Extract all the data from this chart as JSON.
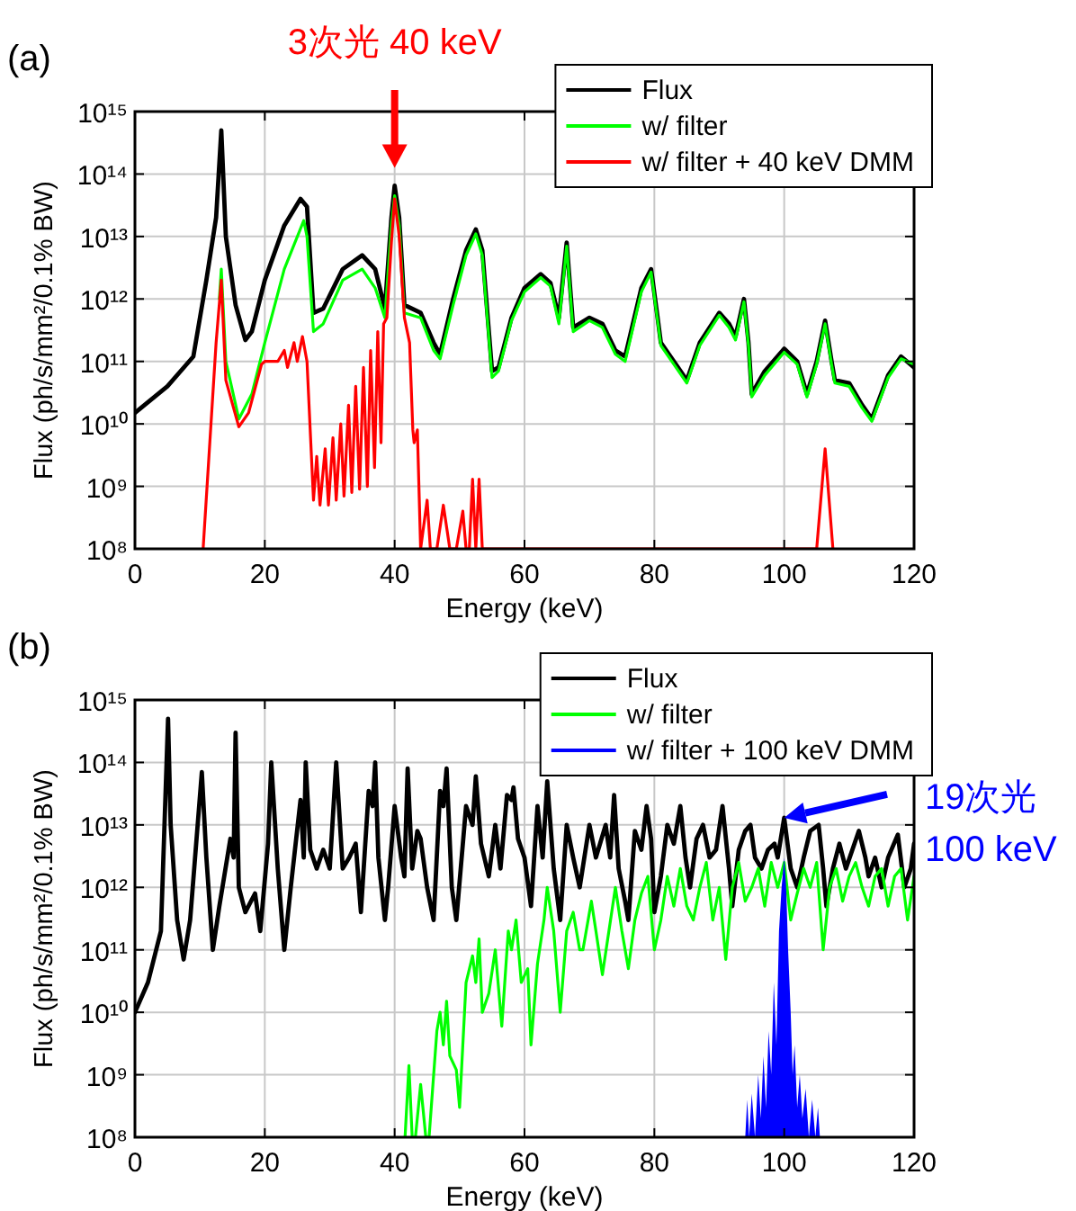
{
  "chart_data": [
    {
      "type": "line",
      "title": "(a)",
      "xlabel": "Energy (keV)",
      "ylabel": "Flux (ph/s/mm²/0.1% BW)",
      "log": true,
      "grid": true,
      "legend": "top right",
      "xlim": [
        0,
        120
      ],
      "xticks": [
        0,
        20,
        40,
        60,
        80,
        100,
        120
      ],
      "ylim": [
        100000000.0,
        1000000000000000.0
      ],
      "yticks": [
        {
          "value": 100000000.0,
          "label": "10⁸"
        },
        {
          "value": 1000000000.0,
          "label": "10⁹"
        },
        {
          "value": 10000000000.0,
          "label": "10¹⁰"
        },
        {
          "value": 100000000000.0,
          "label": "10¹¹"
        },
        {
          "value": 1000000000000.0,
          "label": "10¹²"
        },
        {
          "value": 10000000000000.0,
          "label": "10¹³"
        },
        {
          "value": 100000000000000.0,
          "label": "10¹⁴"
        },
        {
          "value": 1000000000000000.0,
          "label": "10¹⁵"
        }
      ],
      "annotations": [
        "3次光 40 keV"
      ],
      "series": [
        {
          "name": "Flux",
          "color": "#000000",
          "x": [
            0,
            5,
            9,
            11,
            12.5,
            13.3,
            14,
            15.5,
            17,
            18,
            20,
            23,
            25.5,
            26.5,
            27.5,
            29,
            32,
            35,
            37,
            38.5,
            39.5,
            40,
            40.7,
            41.5,
            44,
            46,
            47,
            49,
            51,
            52.5,
            53.5,
            55,
            56,
            58,
            60,
            62.5,
            64,
            65.3,
            66.5,
            67.5,
            70,
            72,
            74,
            75.5,
            78,
            79.5,
            80.5,
            81,
            83,
            85,
            87,
            90,
            91.5,
            92.5,
            93.8,
            94.5,
            95,
            97,
            100,
            102,
            103.5,
            105,
            106.3,
            107.3,
            107.8,
            110,
            112,
            113.5,
            116,
            118,
            120
          ],
          "values": [
            15000000000.0,
            40000000000.0,
            120000000000.0,
            2000000000000.0,
            20000000000000.0,
            500000000000000.0,
            10000000000000.0,
            800000000000.0,
            220000000000.0,
            300000000000.0,
            2000000000000.0,
            15000000000000.0,
            40000000000000.0,
            30000000000000.0,
            600000000000.0,
            700000000000.0,
            3000000000000.0,
            5000000000000.0,
            3000000000000.0,
            700000000000.0,
            20000000000000.0,
            65000000000000.0,
            20000000000000.0,
            800000000000.0,
            600000000000.0,
            200000000000.0,
            130000000000.0,
            1000000000000.0,
            6000000000000.0,
            13000000000000.0,
            6000000000000.0,
            70000000000.0,
            80000000000.0,
            500000000000.0,
            1500000000000.0,
            2500000000000.0,
            1800000000000.0,
            500000000000.0,
            8000000000000.0,
            350000000000.0,
            500000000000.0,
            400000000000.0,
            150000000000.0,
            120000000000.0,
            1500000000000.0,
            3000000000000.0,
            500000000000.0,
            200000000000.0,
            100000000000.0,
            50000000000.0,
            200000000000.0,
            600000000000.0,
            400000000000.0,
            250000000000.0,
            1000000000000.0,
            200000000000.0,
            30000000000.0,
            70000000000.0,
            160000000000.0,
            100000000000.0,
            30000000000.0,
            100000000000.0,
            450000000000.0,
            100000000000.0,
            50000000000.0,
            45000000000.0,
            20000000000.0,
            12000000000.0,
            60000000000.0,
            120000000000.0,
            80000000000.0
          ]
        },
        {
          "name": "w/ filter",
          "color": "#00ff00",
          "x": [
            13,
            13.3,
            14,
            16,
            18,
            20,
            23,
            26,
            26.5,
            27.5,
            29,
            32,
            35,
            37,
            38.5,
            39.5,
            40,
            40.7,
            41.5,
            44,
            46,
            47,
            49,
            51,
            52.5,
            53.5,
            55,
            56,
            58,
            60,
            62.5,
            64,
            65.3,
            66.5,
            67.5,
            70,
            72,
            74,
            75.5,
            78,
            79.5,
            80.5,
            81,
            83,
            85,
            87,
            90,
            91.5,
            92.5,
            93.8,
            94.5,
            95,
            97,
            100,
            102,
            103.5,
            105,
            106.3,
            107.3,
            107.8,
            110,
            112,
            113.5,
            116,
            118,
            120
          ],
          "values": [
            1000000000000.0,
            3000000000000.0,
            100000000000.0,
            12000000000.0,
            30000000000.0,
            200000000000.0,
            3000000000000.0,
            18000000000000.0,
            10000000000000.0,
            300000000000.0,
            400000000000.0,
            2000000000000.0,
            3000000000000.0,
            1500000000000.0,
            500000000000.0,
            15000000000000.0,
            45000000000000.0,
            15000000000000.0,
            600000000000.0,
            500000000000.0,
            150000000000.0,
            110000000000.0,
            800000000000.0,
            5000000000000.0,
            11000000000000.0,
            5000000000000.0,
            55000000000.0,
            70000000000.0,
            450000000000.0,
            1300000000000.0,
            2200000000000.0,
            1600000000000.0,
            400000000000.0,
            7000000000000.0,
            300000000000.0,
            450000000000.0,
            350000000000.0,
            130000000000.0,
            100000000000.0,
            1300000000000.0,
            2700000000000.0,
            450000000000.0,
            180000000000.0,
            90000000000.0,
            45000000000.0,
            180000000000.0,
            550000000000.0,
            350000000000.0,
            220000000000.0,
            900000000000.0,
            180000000000.0,
            27000000000.0,
            60000000000.0,
            140000000000.0,
            90000000000.0,
            27000000000.0,
            90000000000.0,
            400000000000.0,
            90000000000.0,
            45000000000.0,
            40000000000.0,
            18000000000.0,
            11000000000.0,
            55000000000.0,
            110000000000.0,
            90000000000.0
          ]
        },
        {
          "name": "w/ filter + 40 keV DMM",
          "color": "#ff0000",
          "x": [
            10.5,
            12.5,
            13.3,
            14,
            16,
            17.5,
            19.5,
            20,
            22,
            23,
            23.5,
            24.5,
            25,
            25.8,
            26.5,
            27.5,
            28,
            28.5,
            29.3,
            29.8,
            30.5,
            31,
            31.7,
            32.2,
            32.9,
            33.4,
            34,
            34.6,
            35.2,
            35.8,
            36.3,
            36.9,
            37.4,
            37.9,
            38.3,
            38.8,
            39.5,
            40,
            40.7,
            41.5,
            42.3,
            42.8,
            43,
            43.5,
            44,
            45,
            45.5,
            46.5,
            47.5,
            48.5,
            49.5,
            50.5,
            51,
            51.5,
            52,
            52.5,
            53,
            53.5,
            105,
            106.3,
            107.5
          ],
          "values": [
            100000000.0,
            200000000000.0,
            2000000000000.0,
            50000000000.0,
            9000000000.0,
            15000000000.0,
            90000000000.0,
            100000000000.0,
            100000000000.0,
            150000000000.0,
            80000000000.0,
            200000000000.0,
            100000000000.0,
            250000000000.0,
            100000000000.0,
            600000000.0,
            3000000000.0,
            500000000.0,
            4000000000.0,
            500000000.0,
            6000000000.0,
            600000000.0,
            10000000000.0,
            700000000.0,
            20000000000.0,
            800000000.0,
            40000000000.0,
            900000000.0,
            80000000000.0,
            1000000000.0,
            150000000000.0,
            2000000000.0,
            300000000000.0,
            5000000000.0,
            400000000000.0,
            500000000000.0,
            8000000000000.0,
            40000000000000.0,
            10000000000000.0,
            500000000000.0,
            200000000000.0,
            8000000000.0,
            5000000000.0,
            8000000000.0,
            100000000.0,
            600000000.0,
            100000000.0,
            100000000.0,
            500000000.0,
            100000000.0,
            100000000.0,
            400000000.0,
            100000000.0,
            100000000.0,
            1300000000.0,
            100000000.0,
            1300000000.0,
            100000000.0,
            100000000.0,
            4000000000.0,
            100000000.0
          ]
        }
      ]
    },
    {
      "type": "line",
      "title": "(b)",
      "xlabel": "Energy (keV)",
      "ylabel": "Flux (ph/s/mm²/0.1% BW)",
      "log": true,
      "grid": true,
      "legend": "top right",
      "xlim": [
        0,
        120
      ],
      "xticks": [
        0,
        20,
        40,
        60,
        80,
        100,
        120
      ],
      "ylim": [
        100000000.0,
        1000000000000000.0
      ],
      "yticks": [
        {
          "value": 100000000.0,
          "label": "10⁸"
        },
        {
          "value": 1000000000.0,
          "label": "10⁹"
        },
        {
          "value": 10000000000.0,
          "label": "10¹⁰"
        },
        {
          "value": 100000000000.0,
          "label": "10¹¹"
        },
        {
          "value": 1000000000000.0,
          "label": "10¹²"
        },
        {
          "value": 10000000000000.0,
          "label": "10¹³"
        },
        {
          "value": 100000000000000.0,
          "label": "10¹⁴"
        },
        {
          "value": 1000000000000000.0,
          "label": "10¹⁵"
        }
      ],
      "annotations": [
        "19次光\n100 keV"
      ],
      "series": [
        {
          "name": "Flux",
          "color": "#000000",
          "x": [
            0,
            2,
            4,
            5.1,
            5.5,
            6.5,
            7.5,
            8.5,
            10.3,
            11,
            12,
            13,
            14.7,
            15.2,
            15.5,
            16,
            17,
            18.5,
            19.3,
            20.5,
            21,
            22,
            23,
            24,
            25.5,
            26,
            26.3,
            27,
            28,
            29,
            30,
            31,
            32,
            33,
            34,
            34.8,
            36,
            36.6,
            37,
            37.5,
            38.5,
            39,
            40,
            41,
            41.5,
            42,
            42.7,
            43.5,
            44,
            45,
            46,
            47,
            47.5,
            48,
            48.8,
            49.5,
            51,
            52,
            52.5,
            53.3,
            54.5,
            55.5,
            56.3,
            57.3,
            58,
            58.3,
            59,
            60,
            61,
            62,
            62.8,
            63.5,
            64.5,
            65.5,
            66.5,
            67.5,
            68.5,
            70,
            71,
            72.5,
            73.2,
            73.8,
            74.5,
            75.5,
            76,
            77,
            78,
            78.8,
            79.5,
            80,
            81,
            82,
            83,
            84,
            84.8,
            85.5,
            86.5,
            87.5,
            88.5,
            89.5,
            90.5,
            91.5,
            92,
            93,
            94,
            94.8,
            95.5,
            96.5,
            97.5,
            98.5,
            99,
            100,
            101,
            102,
            103,
            104,
            105.3,
            106,
            106.5,
            107.5,
            108.5,
            109.5,
            110.5,
            111.5,
            112.5,
            113,
            114,
            115,
            116,
            117.5,
            118.5,
            119.5,
            120
          ],
          "values": [
            10000000000.0,
            30000000000.0,
            200000000000.0,
            500000000000000.0,
            10000000000000.0,
            300000000000.0,
            70000000000.0,
            300000000000.0,
            70000000000000.0,
            3000000000000.0,
            100000000000.0,
            500000000000.0,
            6000000000000.0,
            3000000000000.0,
            300000000000000.0,
            1000000000000.0,
            400000000000.0,
            800000000000.0,
            200000000000.0,
            5000000000000.0,
            100000000000000.0,
            2000000000000.0,
            100000000000.0,
            1000000000000.0,
            25000000000000.0,
            3000000000000.0,
            100000000000000.0,
            4000000000000.0,
            2000000000000.0,
            4000000000000.0,
            2000000000000.0,
            100000000000000.0,
            2000000000000.0,
            3000000000000.0,
            5000000000000.0,
            400000000000.0,
            35000000000000.0,
            20000000000000.0,
            100000000000000.0,
            3000000000000.0,
            300000000000.0,
            1000000000000.0,
            20000000000000.0,
            3000000000000.0,
            1500000000000.0,
            80000000000000.0,
            2000000000000.0,
            8000000000000.0,
            6000000000000.0,
            1000000000000.0,
            300000000000.0,
            35000000000000.0,
            20000000000000.0,
            80000000000000.0,
            1000000000000.0,
            300000000000.0,
            20000000000000.0,
            10000000000000.0,
            60000000000000.0,
            5000000000000.0,
            1500000000000.0,
            10000000000000.0,
            2000000000000.0,
            30000000000000.0,
            25000000000000.0,
            40000000000000.0,
            6000000000000.0,
            3000000000000.0,
            500000000000.0,
            20000000000000.0,
            3000000000000.0,
            50000000000000.0,
            2000000000000.0,
            300000000000.0,
            10000000000000.0,
            3000000000000.0,
            1000000000000.0,
            10000000000000.0,
            3000000000000.0,
            10000000000000.0,
            3000000000000.0,
            30000000000000.0,
            2000000000000.0,
            600000000000.0,
            300000000000.0,
            8000000000000.0,
            4000000000000.0,
            20000000000000.0,
            6000000000000.0,
            400000000000.0,
            1500000000000.0,
            10000000000000.0,
            5000000000000.0,
            20000000000000.0,
            3000000000000.0,
            1000000000000.0,
            6000000000000.0,
            10000000000000.0,
            3000000000000.0,
            4000000000000.0,
            20000000000000.0,
            2000000000000.0,
            500000000000.0,
            4000000000000.0,
            8000000000000.0,
            10000000000000.0,
            3000000000000.0,
            2000000000000.0,
            4000000000000.0,
            5000000000000.0,
            3000000000000.0,
            13000000000000.0,
            2000000000000.0,
            1000000000000.0,
            3000000000000.0,
            8000000000000.0,
            10000000000000.0,
            2000000000000.0,
            500000000000.0,
            2000000000000.0,
            5000000000000.0,
            2000000000000.0,
            4000000000000.0,
            8000000000000.0,
            3000000000000.0,
            1500000000000.0,
            3000000000000.0,
            1000000000000.0,
            3000000000000.0,
            7000000000000.0,
            1000000000000.0,
            2000000000000.0,
            5000000000000.0
          ]
        },
        {
          "name": "w/ filter",
          "color": "#00ff00",
          "x": [
            41.6,
            42.2,
            42.7,
            43.2,
            44,
            44.8,
            45.3,
            46.5,
            47,
            47.5,
            48,
            48.5,
            49.5,
            50,
            51,
            52,
            52.5,
            53,
            53.5,
            54.5,
            55.5,
            56.5,
            57.5,
            58,
            58.7,
            59.5,
            60.5,
            61,
            62,
            63,
            63.5,
            64.5,
            65.5,
            66.5,
            67.5,
            68.5,
            69,
            70.3,
            71,
            72,
            73,
            74,
            75,
            76,
            77,
            78,
            79,
            80,
            81,
            82,
            83,
            84,
            85,
            86,
            87,
            88,
            89,
            90,
            91,
            92,
            93,
            94,
            95,
            96,
            97,
            98,
            99,
            100,
            101,
            102,
            103,
            104,
            105,
            106,
            107,
            108,
            109,
            110,
            111,
            112,
            113,
            114,
            115,
            116,
            117,
            118,
            119,
            120
          ],
          "values": [
            100000000.0,
            1400000000.0,
            100000000.0,
            100000000.0,
            700000000.0,
            100000000.0,
            100000000.0,
            5000000000.0,
            10000000000.0,
            3000000000.0,
            15000000000.0,
            2000000000.0,
            1200000000.0,
            300000000.0,
            30000000000.0,
            80000000000.0,
            30000000000.0,
            150000000000.0,
            10000000000.0,
            20000000000.0,
            100000000000.0,
            6000000000.0,
            200000000000.0,
            100000000000.0,
            300000000000.0,
            30000000000.0,
            50000000000.0,
            3000000000.0,
            60000000000.0,
            300000000000.0,
            1000000000000.0,
            200000000000.0,
            10000000000.0,
            200000000000.0,
            400000000000.0,
            100000000000.0,
            100000000000.0,
            600000000000.0,
            200000000000.0,
            40000000000.0,
            200000000000.0,
            1000000000000.0,
            200000000000.0,
            50000000000.0,
            300000000000.0,
            800000000000.0,
            1500000000000.0,
            100000000000.0,
            300000000000.0,
            1500000000000.0,
            500000000000.0,
            2000000000000.0,
            500000000000.0,
            300000000000.0,
            1000000000000.0,
            2500000000000.0,
            300000000000.0,
            1000000000000.0,
            70000000000.0,
            1000000000000.0,
            2500000000000.0,
            600000000000.0,
            1000000000000.0,
            2000000000000.0,
            500000000000.0,
            2500000000000.0,
            1000000000000.0,
            2500000000000.0,
            300000000000.0,
            800000000000.0,
            2000000000000.0,
            1000000000000.0,
            2500000000000.0,
            100000000000.0,
            1000000000000.0,
            2000000000000.0,
            600000000000.0,
            1500000000000.0,
            2500000000000.0,
            1000000000000.0,
            500000000000.0,
            1500000000000.0,
            2000000000000.0,
            500000000000.0,
            1500000000000.0,
            2000000000000.0,
            300000000000.0,
            1500000000000.0
          ]
        },
        {
          "name": "w/ filter + 100 keV DMM",
          "color": "#0000ff",
          "type": "area",
          "x": [
            94,
            94.3,
            94.6,
            95,
            95.5,
            96,
            96.4,
            96.8,
            97.2,
            97.6,
            98,
            98.4,
            98.8,
            99.2,
            99.6,
            100,
            100.3,
            100.6,
            101,
            101.3,
            101.6,
            102,
            102.4,
            102.8,
            103.3,
            103.8,
            104.3,
            104.8,
            105.2,
            105.5
          ],
          "values": [
            100000000.0,
            400000000.0,
            100000000.0,
            500000000.0,
            100000000.0,
            1000000000.0,
            200000000.0,
            2000000000.0,
            300000000.0,
            5000000000.0,
            1000000000.0,
            30000000000.0,
            3000000000.0,
            200000000000.0,
            1000000000000.0,
            3000000000000.0,
            1000000000000.0,
            100000000000.0,
            10000000000.0,
            1000000000.0,
            3000000000.0,
            300000000.0,
            1000000000.0,
            200000000.0,
            600000000.0,
            100000000.0,
            400000000.0,
            100000000.0,
            300000000.0,
            100000000.0
          ]
        }
      ]
    }
  ]
}
